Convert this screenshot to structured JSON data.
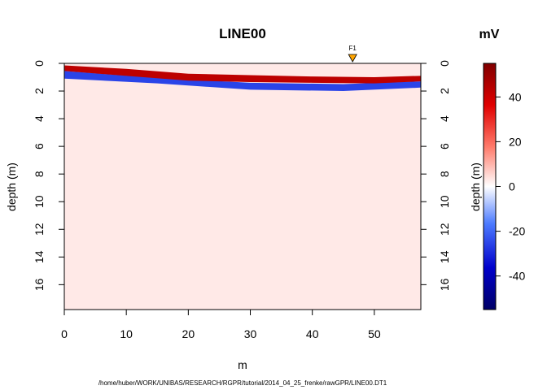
{
  "chart_data": {
    "type": "heatmap",
    "title": "LINE00",
    "xlabel": "m",
    "ylabel": "depth (m)",
    "ylabel_right": "depth (m)",
    "colorbar_unit": "mV",
    "source_path": "/home/huber/WORK/UNIBAS/RESEARCH/RGPR/tutorial/2014_04_25_frenke/rawGPR/LINE00.DT1",
    "xlim": [
      0,
      57.5
    ],
    "ylim": [
      17.8,
      0
    ],
    "x_ticks": [
      "0",
      "10",
      "20",
      "30",
      "40",
      "50"
    ],
    "y_ticks": [
      "0",
      "2",
      "4",
      "6",
      "8",
      "10",
      "12",
      "14",
      "16"
    ],
    "colorbar": {
      "range": [
        -55,
        55
      ],
      "ticks": [
        "-40",
        "-20",
        "0",
        "20",
        "40"
      ],
      "colors": [
        "#000066",
        "#0000cc",
        "#4d7bff",
        "#ffffff",
        "#ff7b6b",
        "#e00000",
        "#800000"
      ]
    },
    "fiducials": [
      {
        "label": "F1",
        "x": 46.5,
        "color": "#ffa500"
      }
    ],
    "surface_profile": [
      {
        "x": 0,
        "top": 0.15,
        "bottom": 0.55,
        "value": 40
      },
      {
        "x": 10,
        "top": 0.4,
        "bottom": 0.9,
        "value": 45
      },
      {
        "x": 20,
        "top": 0.75,
        "bottom": 1.25,
        "value": 50
      },
      {
        "x": 30,
        "top": 0.85,
        "bottom": 1.35,
        "value": 48
      },
      {
        "x": 40,
        "top": 0.95,
        "bottom": 1.4,
        "value": 45
      },
      {
        "x": 50,
        "top": 1.0,
        "bottom": 1.45,
        "value": 40
      },
      {
        "x": 57.5,
        "top": 0.9,
        "bottom": 1.3,
        "value": 35
      }
    ],
    "negative_band": [
      {
        "x": 0,
        "top": 0.55,
        "bottom": 1.1,
        "value": -50
      },
      {
        "x": 15,
        "top": 1.05,
        "bottom": 1.45,
        "value": -30
      },
      {
        "x": 30,
        "top": 1.4,
        "bottom": 1.9,
        "value": -20
      },
      {
        "x": 45,
        "top": 1.5,
        "bottom": 2.0,
        "value": -18
      },
      {
        "x": 57.5,
        "top": 1.3,
        "bottom": 1.75,
        "value": -15
      }
    ],
    "background_value": 3
  }
}
